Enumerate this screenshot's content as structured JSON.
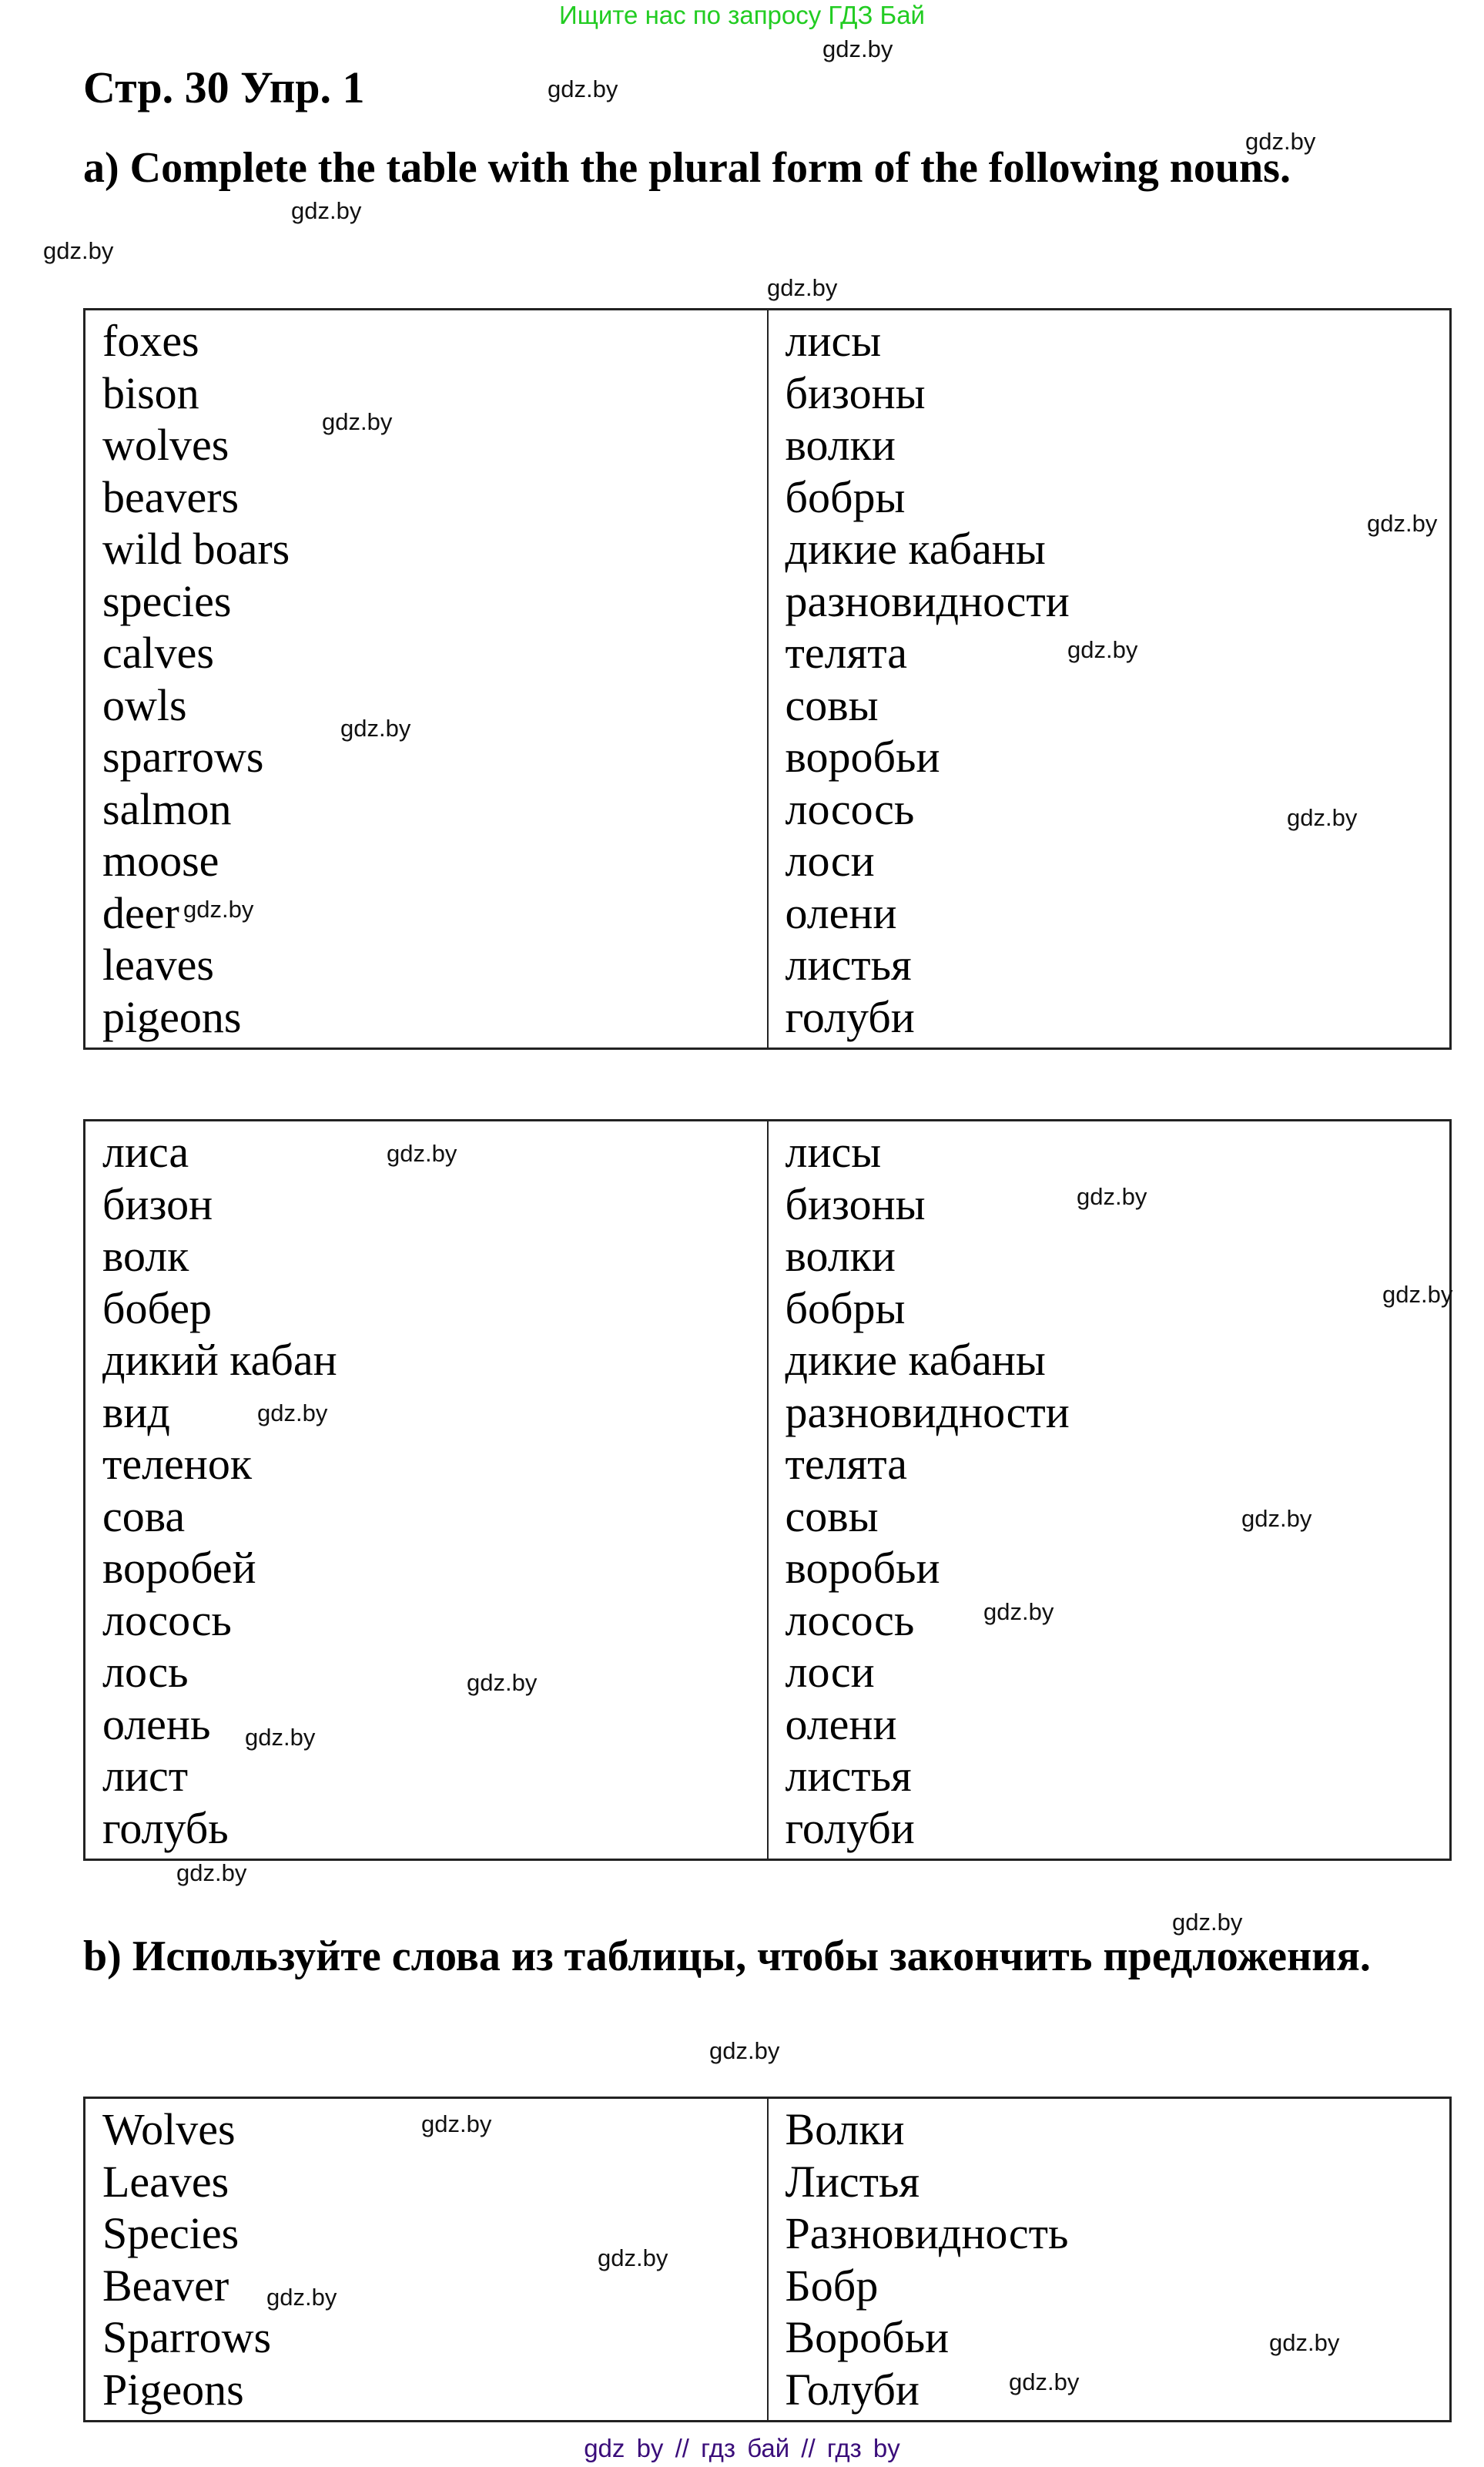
{
  "banner": "Ищите нас по запросу ГДЗ Бай",
  "title": "Стр. 30 Упр. 1",
  "heading_a": "a) Complete the table with the plural form of the following nouns.",
  "heading_b": "b) Используйте слова из таблицы, чтобы закончить предложения.",
  "table1": {
    "left": [
      "foxes",
      "bison",
      "wolves",
      "beavers",
      "wild boars",
      "species",
      "calves",
      "owls",
      "sparrows",
      "salmon",
      "moose",
      "deer",
      "leaves",
      "pigeons"
    ],
    "right": [
      "лисы",
      "бизоны",
      "волки",
      "бобры",
      "дикие кабаны",
      "разновидности",
      "телята",
      "совы",
      "воробьи",
      "лосось",
      "лоси",
      "олени",
      "листья",
      "голуби"
    ]
  },
  "table2": {
    "left": [
      "лиса",
      "бизон",
      "волк",
      "бобер",
      "дикий кабан",
      "вид",
      "теленок",
      "сова",
      "воробей",
      "лосось",
      "лось",
      "олень",
      "лист",
      "голубь"
    ],
    "right": [
      "лисы",
      "бизоны",
      "волки",
      "бобры",
      "дикие кабаны",
      "разновидности",
      "телята",
      "совы",
      "воробьи",
      "лосось",
      "лоси",
      "олени",
      "листья",
      "голуби"
    ]
  },
  "table3": {
    "left": [
      "Wolves",
      "Leaves",
      "Species",
      "Beaver",
      "Sparrows",
      "Pigeons"
    ],
    "right": [
      "Волки",
      "Листья",
      "Разновидность",
      "Бобр",
      "Воробьи",
      "Голуби"
    ]
  },
  "watermark": "gdz.by",
  "footer": "gdz by  //  гдз бай  //  гдз by",
  "colors": {
    "banner": "#22cc22",
    "footer": "#3a0d7a"
  }
}
